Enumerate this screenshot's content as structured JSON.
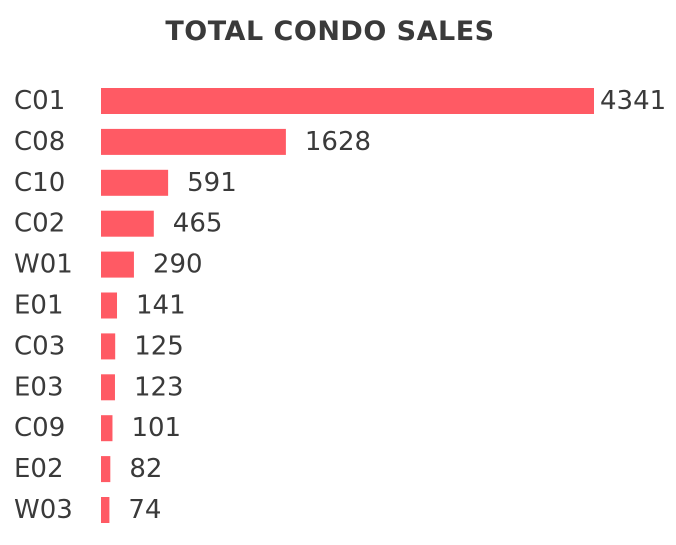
{
  "chart_data": {
    "type": "bar",
    "orientation": "horizontal",
    "title": "TOTAL CONDO SALES",
    "categories": [
      "C01",
      "C08",
      "C10",
      "C02",
      "W01",
      "E01",
      "C03",
      "E03",
      "C09",
      "E02",
      "W03"
    ],
    "values": [
      4341,
      1628,
      591,
      465,
      290,
      141,
      125,
      123,
      101,
      82,
      74
    ],
    "xlim": [
      0,
      4341
    ],
    "grid": false,
    "legend": "none",
    "bar_color": "#ff5a64",
    "text_color": "#3a3a3a"
  }
}
